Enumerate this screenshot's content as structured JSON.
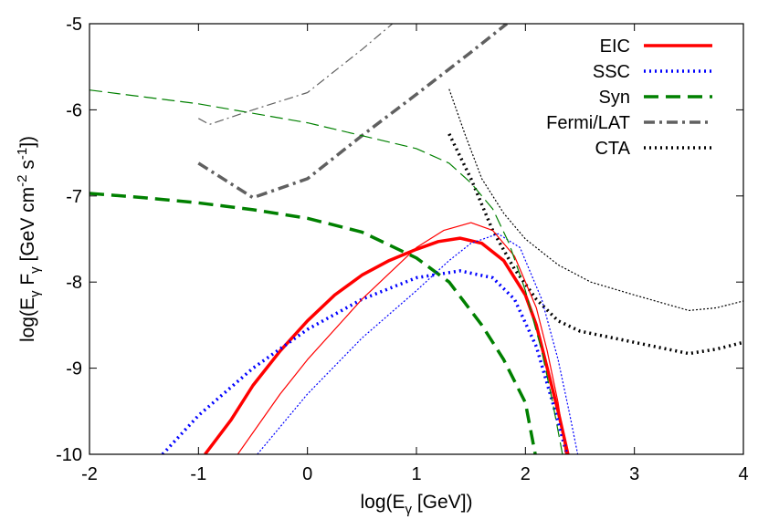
{
  "chart_data": {
    "type": "line",
    "xlabel": {
      "pre": "log(E",
      "sub": "γ",
      "post": " [GeV])"
    },
    "ylabel": {
      "p1": "log(E",
      "s1": "γ",
      "p2": " F",
      "s2": "γ",
      "p3": " [GeV cm",
      "e1": "-2",
      "p4": " s",
      "e2": "-1",
      "p5": "])"
    },
    "xlim": [
      -2,
      4
    ],
    "ylim": [
      -10,
      -5
    ],
    "xticks": [
      "-2",
      "-1",
      "0",
      "1",
      "2",
      "3",
      "4"
    ],
    "yticks": [
      "-10",
      "-9",
      "-8",
      "-7",
      "-6",
      "-5"
    ],
    "grid": false,
    "legend_position": "top-right",
    "series": [
      {
        "name": "EIC",
        "color": "#ff0000",
        "style": "solid",
        "weight": "thick",
        "points": [
          [
            -0.94,
            -10
          ],
          [
            -0.7,
            -9.6
          ],
          [
            -0.5,
            -9.2
          ],
          [
            -0.25,
            -8.8
          ],
          [
            0,
            -8.45
          ],
          [
            0.25,
            -8.15
          ],
          [
            0.5,
            -7.92
          ],
          [
            0.75,
            -7.75
          ],
          [
            1,
            -7.62
          ],
          [
            1.2,
            -7.53
          ],
          [
            1.4,
            -7.49
          ],
          [
            1.6,
            -7.55
          ],
          [
            1.8,
            -7.75
          ],
          [
            2,
            -8.15
          ],
          [
            2.1,
            -8.5
          ],
          [
            2.2,
            -9.0
          ],
          [
            2.3,
            -9.5
          ],
          [
            2.39,
            -10
          ]
        ]
      },
      {
        "name": "SSC",
        "color": "#0000ff",
        "style": "dotted",
        "weight": "thick",
        "points": [
          [
            -1.33,
            -10
          ],
          [
            -1,
            -9.55
          ],
          [
            -0.5,
            -9.0
          ],
          [
            0,
            -8.55
          ],
          [
            0.5,
            -8.2
          ],
          [
            1,
            -7.95
          ],
          [
            1.4,
            -7.87
          ],
          [
            1.7,
            -7.95
          ],
          [
            1.9,
            -8.2
          ],
          [
            2.1,
            -8.75
          ],
          [
            2.25,
            -9.4
          ],
          [
            2.38,
            -10
          ]
        ]
      },
      {
        "name": "Syn",
        "color": "#008000",
        "style": "dashed",
        "weight": "thick",
        "points": [
          [
            -2,
            -6.97
          ],
          [
            -1.5,
            -7.02
          ],
          [
            -1,
            -7.08
          ],
          [
            -0.5,
            -7.16
          ],
          [
            0,
            -7.26
          ],
          [
            0.5,
            -7.42
          ],
          [
            1,
            -7.72
          ],
          [
            1.3,
            -8.0
          ],
          [
            1.6,
            -8.5
          ],
          [
            1.8,
            -8.9
          ],
          [
            2.0,
            -9.4
          ],
          [
            2.09,
            -10
          ]
        ]
      },
      {
        "name": "Fermi/LAT",
        "color": "#606060",
        "style": "dashdot",
        "weight": "thick",
        "points": [
          [
            -1,
            -6.62
          ],
          [
            -0.5,
            -7.02
          ],
          [
            0,
            -6.8
          ],
          [
            0.5,
            -6.3
          ],
          [
            1,
            -5.82
          ],
          [
            1.5,
            -5.33
          ],
          [
            1.83,
            -5.0
          ]
        ]
      },
      {
        "name": "CTA",
        "color": "#000000",
        "style": "dotted",
        "weight": "thick",
        "points": [
          [
            1.3,
            -6.28
          ],
          [
            1.5,
            -6.8
          ],
          [
            1.7,
            -7.4
          ],
          [
            1.9,
            -7.85
          ],
          [
            2.1,
            -8.2
          ],
          [
            2.3,
            -8.45
          ],
          [
            2.5,
            -8.57
          ],
          [
            3,
            -8.7
          ],
          [
            3.5,
            -8.83
          ],
          [
            3.75,
            -8.78
          ],
          [
            4,
            -8.7
          ]
        ]
      },
      {
        "color": "#ff0000",
        "style": "solid",
        "weight": "thin",
        "points": [
          [
            -0.64,
            -10
          ],
          [
            -0.25,
            -9.3
          ],
          [
            0,
            -8.9
          ],
          [
            0.5,
            -8.2
          ],
          [
            1,
            -7.6
          ],
          [
            1.25,
            -7.4
          ],
          [
            1.5,
            -7.31
          ],
          [
            1.7,
            -7.4
          ],
          [
            1.9,
            -7.7
          ],
          [
            2.1,
            -8.3
          ],
          [
            2.2,
            -8.8
          ],
          [
            2.3,
            -9.4
          ],
          [
            2.37,
            -10
          ]
        ]
      },
      {
        "color": "#0000ff",
        "style": "dotted",
        "weight": "thin",
        "points": [
          [
            -0.46,
            -10
          ],
          [
            0,
            -9.3
          ],
          [
            0.5,
            -8.65
          ],
          [
            1,
            -8.1
          ],
          [
            1.3,
            -7.75
          ],
          [
            1.5,
            -7.55
          ],
          [
            1.75,
            -7.44
          ],
          [
            1.95,
            -7.6
          ],
          [
            2.15,
            -8.2
          ],
          [
            2.3,
            -8.9
          ],
          [
            2.4,
            -9.5
          ],
          [
            2.48,
            -10
          ]
        ]
      },
      {
        "color": "#008000",
        "style": "dashed",
        "weight": "thin",
        "points": [
          [
            -2,
            -5.77
          ],
          [
            -1,
            -5.93
          ],
          [
            0,
            -6.15
          ],
          [
            0.5,
            -6.3
          ],
          [
            1,
            -6.45
          ],
          [
            1.3,
            -6.62
          ],
          [
            1.5,
            -6.85
          ],
          [
            1.7,
            -7.15
          ],
          [
            1.85,
            -7.55
          ],
          [
            2.0,
            -8.1
          ],
          [
            2.15,
            -8.8
          ],
          [
            2.25,
            -9.4
          ],
          [
            2.34,
            -10
          ]
        ]
      },
      {
        "color": "#606060",
        "style": "dashdot",
        "weight": "thin",
        "points": [
          [
            -1,
            -6.1
          ],
          [
            -0.9,
            -6.17
          ],
          [
            -0.5,
            -6.0
          ],
          [
            0,
            -5.8
          ],
          [
            0.5,
            -5.3
          ],
          [
            0.78,
            -5.0
          ]
        ]
      },
      {
        "color": "#000000",
        "style": "dotted",
        "weight": "thin",
        "points": [
          [
            1.3,
            -5.76
          ],
          [
            1.45,
            -6.3
          ],
          [
            1.6,
            -6.8
          ],
          [
            1.8,
            -7.2
          ],
          [
            2,
            -7.5
          ],
          [
            2.3,
            -7.8
          ],
          [
            2.6,
            -8.0
          ],
          [
            3,
            -8.15
          ],
          [
            3.5,
            -8.33
          ],
          [
            3.75,
            -8.3
          ],
          [
            4,
            -8.22
          ]
        ]
      }
    ]
  }
}
